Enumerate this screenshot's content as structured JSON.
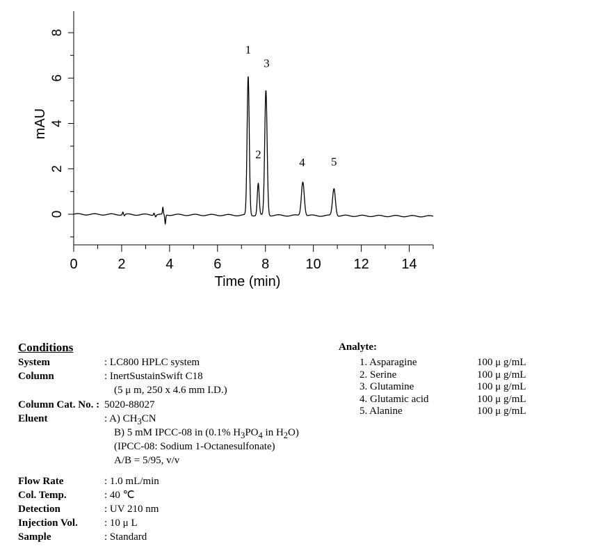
{
  "chart_data": {
    "type": "line",
    "title": "",
    "xlabel": "Time (min)",
    "ylabel": "mAU",
    "xlim": [
      0,
      15
    ],
    "ylim": [
      -1,
      9
    ],
    "x_ticks": [
      "0",
      "2",
      "4",
      "6",
      "8",
      "10",
      "12",
      "14"
    ],
    "y_ticks": [
      "0",
      "2",
      "4",
      "6",
      "8"
    ],
    "grid": false,
    "baseline": 0,
    "peaks": [
      {
        "label": "1",
        "time": 7.28,
        "height": 6.1
      },
      {
        "label": "2",
        "time": 7.7,
        "height": 1.4
      },
      {
        "label": "3",
        "time": 8.02,
        "height": 5.5
      },
      {
        "label": "4",
        "time": 9.56,
        "height": 1.5
      },
      {
        "label": "5",
        "time": 10.86,
        "height": 1.2
      }
    ]
  },
  "conditions": {
    "title": "Conditions",
    "rows": [
      {
        "key": "System",
        "lines": [
          ": LC800 HPLC system"
        ]
      },
      {
        "key": "Column",
        "lines": [
          ": InertSustainSwift C18",
          "(5 μ m, 250 x 4.6 mm I.D.)"
        ]
      },
      {
        "key": "Column Cat. No. :",
        "lines": [
          "5020-88027"
        ]
      },
      {
        "key": "Eluent",
        "lines": [
          ": A) CH3CN",
          "B) 5 mM IPCC-08 in (0.1% H3PO4 in H2O)",
          "(IPCC-08: Sodium 1-Octanesulfonate)",
          "A/B = 5/95, v/v"
        ]
      },
      {
        "key": "Flow Rate",
        "lines": [
          ": 1.0 mL/min"
        ]
      },
      {
        "key": "Col. Temp.",
        "lines": [
          ": 40 ℃"
        ]
      },
      {
        "key": "Detection",
        "lines": [
          ": UV 210 nm"
        ]
      },
      {
        "key": "Injection Vol.",
        "lines": [
          ": 10 μ L"
        ]
      },
      {
        "key": "Sample",
        "lines": [
          ": Standard"
        ]
      }
    ]
  },
  "analyte": {
    "title": "Analyte:",
    "items": [
      {
        "name": "1. Asparagine",
        "conc": "100 μ g/mL"
      },
      {
        "name": "2. Serine",
        "conc": "100 μ g/mL"
      },
      {
        "name": "3. Glutamine",
        "conc": "100 μ g/mL"
      },
      {
        "name": "4. Glutamic acid",
        "conc": "100 μ g/mL"
      },
      {
        "name": "5. Alanine",
        "conc": "100 μ g/mL"
      }
    ]
  }
}
